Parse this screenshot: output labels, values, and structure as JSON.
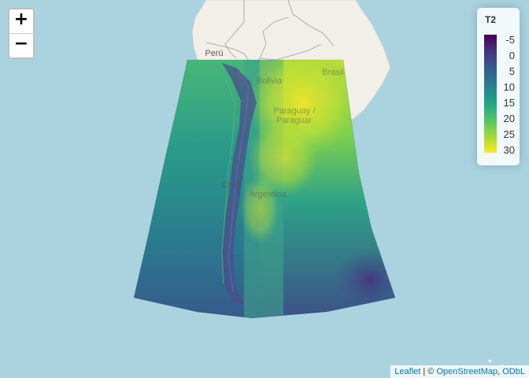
{
  "map": {
    "zoom_in_label": "+",
    "zoom_out_label": "−",
    "place_labels": {
      "peru": "Perú",
      "bolivia": "Bolivia",
      "brasil": "Brasil",
      "paraguay": "Paraguay /",
      "paraguai": "Paraguai",
      "chile": "Chile",
      "argentina": "Argentina"
    },
    "colors": {
      "ocean": "#aad3df",
      "land": "#f2efe9",
      "border": "#9e9aa7"
    }
  },
  "legend": {
    "title": "T2",
    "labels": [
      "-5",
      "0",
      "5",
      "10",
      "15",
      "20",
      "25",
      "30"
    ],
    "colors": [
      "#440154",
      "#46327e",
      "#365c8d",
      "#277f8e",
      "#1fa187",
      "#4ac16d",
      "#a0da39",
      "#fde725"
    ]
  },
  "attribution": {
    "leaflet": "Leaflet",
    "separator": " | © ",
    "osm": "OpenStreetMap",
    "comma": ", ",
    "odbl": "ODbL"
  }
}
